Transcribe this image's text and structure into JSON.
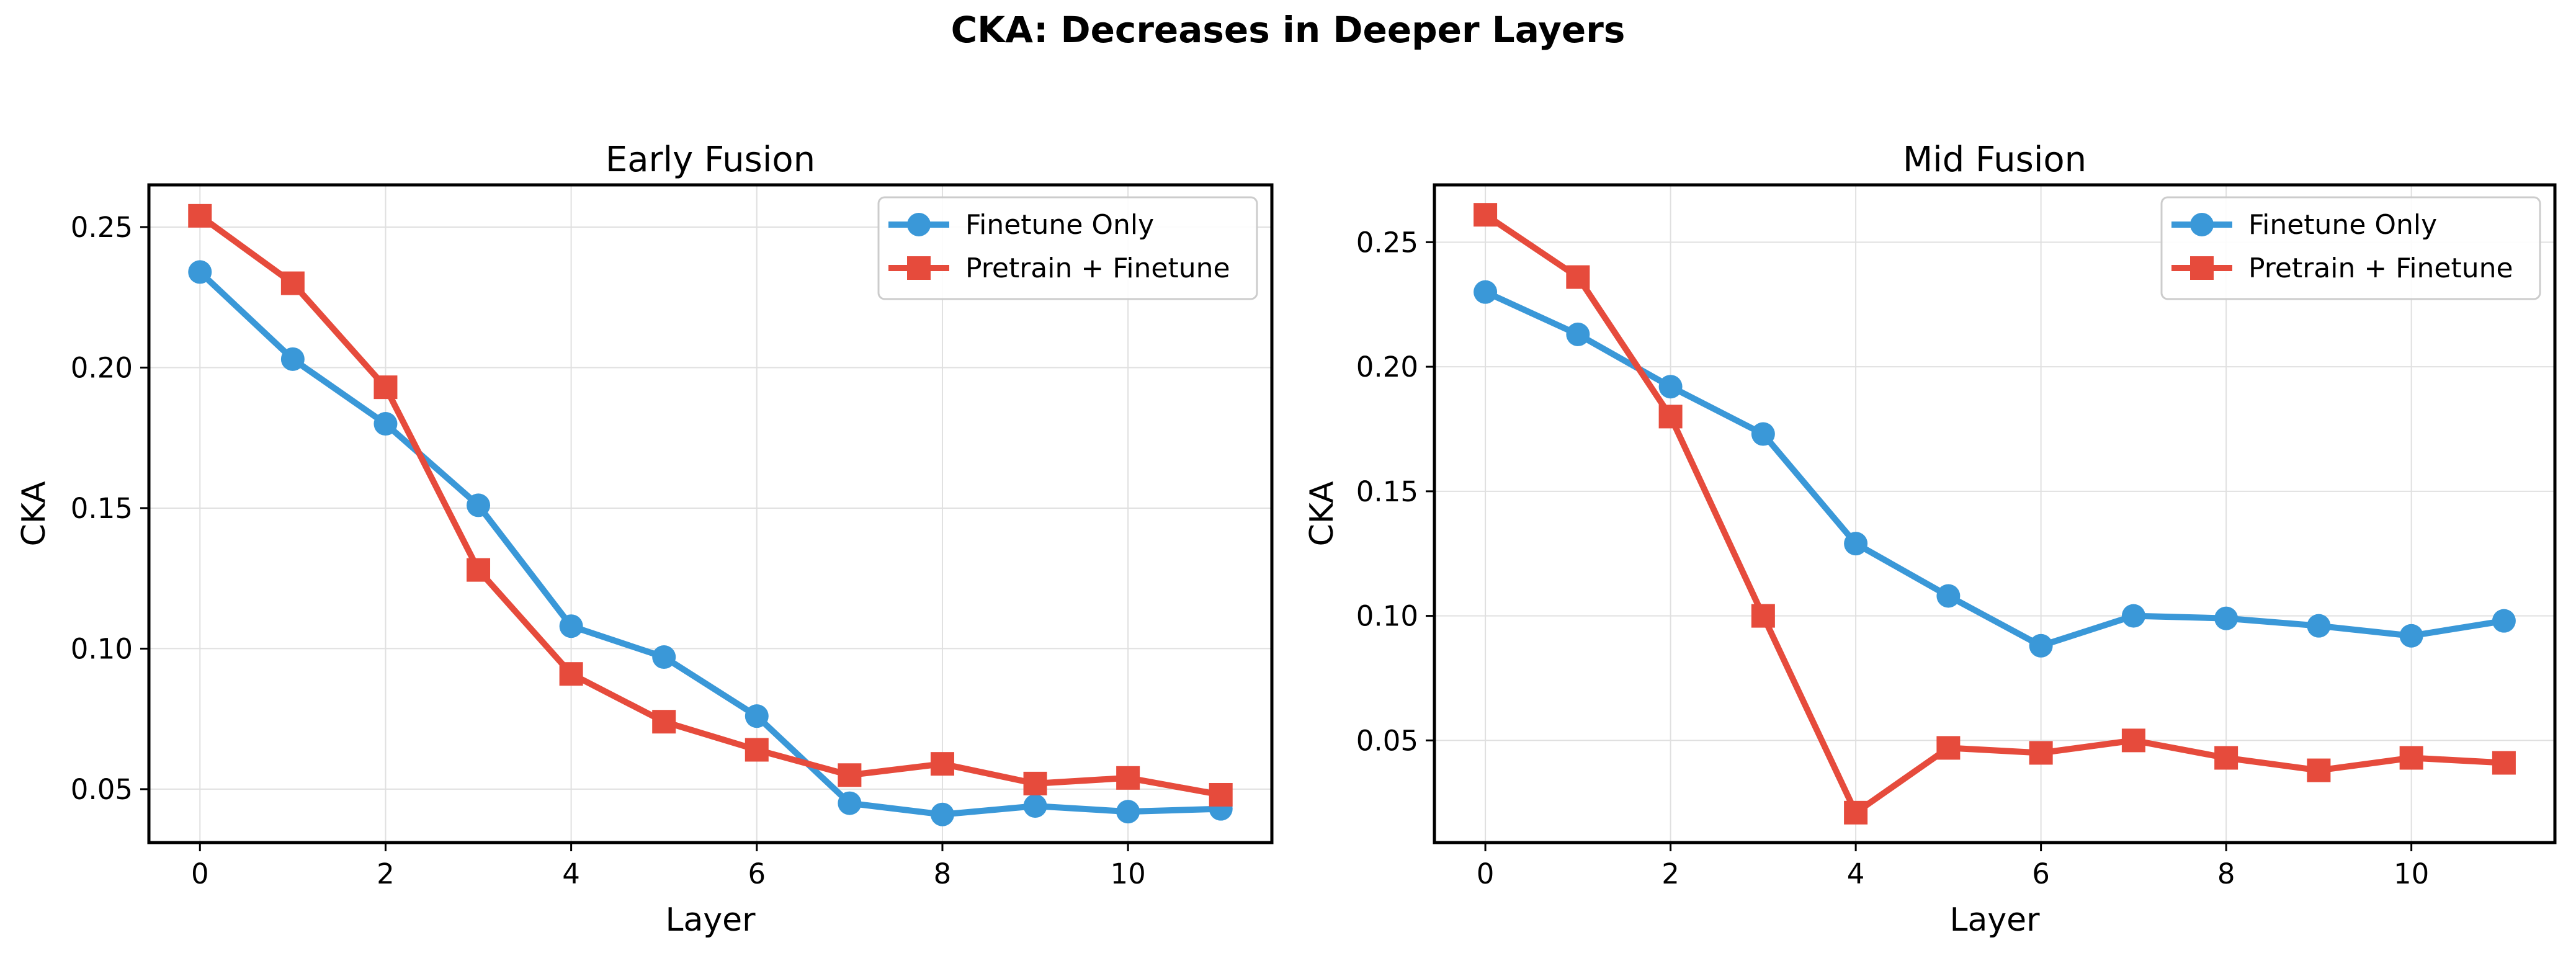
{
  "figure": {
    "title": "CKA: Decreases in Deeper Layers",
    "colors": {
      "finetune": "#3a98d8",
      "pretrain": "#e64b3c",
      "grid": "#e0e0e0",
      "axes": "#000000"
    }
  },
  "chart_data": [
    {
      "type": "line",
      "title": "Early Fusion",
      "xlabel": "Layer",
      "ylabel": "CKA",
      "x": [
        0,
        1,
        2,
        3,
        4,
        5,
        6,
        7,
        8,
        9,
        10,
        11
      ],
      "xlim": [
        -0.55,
        11.55
      ],
      "ylim": [
        0.031,
        0.265
      ],
      "xticks": [
        0,
        2,
        4,
        6,
        8,
        10
      ],
      "xtick_labels": [
        "0",
        "2",
        "4",
        "6",
        "8",
        "10"
      ],
      "yticks": [
        0.05,
        0.1,
        0.15,
        0.2,
        0.25
      ],
      "ytick_labels": [
        "0.05",
        "0.10",
        "0.15",
        "0.20",
        "0.25"
      ],
      "grid": true,
      "legend_position": "top-right",
      "series": [
        {
          "name": "Finetune Only",
          "marker": "circle",
          "color": "#3a98d8",
          "values": [
            0.234,
            0.203,
            0.18,
            0.151,
            0.108,
            0.097,
            0.076,
            0.045,
            0.041,
            0.044,
            0.042,
            0.043
          ]
        },
        {
          "name": "Pretrain + Finetune",
          "marker": "square",
          "color": "#e64b3c",
          "values": [
            0.254,
            0.23,
            0.193,
            0.128,
            0.091,
            0.074,
            0.064,
            0.055,
            0.059,
            0.052,
            0.054,
            0.048
          ]
        }
      ]
    },
    {
      "type": "line",
      "title": "Mid Fusion",
      "xlabel": "Layer",
      "ylabel": "CKA",
      "x": [
        0,
        1,
        2,
        3,
        4,
        5,
        6,
        7,
        8,
        9,
        10,
        11
      ],
      "xlim": [
        -0.55,
        11.55
      ],
      "ylim": [
        0.009,
        0.273
      ],
      "xticks": [
        0,
        2,
        4,
        6,
        8,
        10
      ],
      "xtick_labels": [
        "0",
        "2",
        "4",
        "6",
        "8",
        "10"
      ],
      "yticks": [
        0.05,
        0.1,
        0.15,
        0.2,
        0.25
      ],
      "ytick_labels": [
        "0.05",
        "0.10",
        "0.15",
        "0.20",
        "0.25"
      ],
      "grid": true,
      "legend_position": "top-right",
      "series": [
        {
          "name": "Finetune Only",
          "marker": "circle",
          "color": "#3a98d8",
          "values": [
            0.23,
            0.213,
            0.192,
            0.173,
            0.129,
            0.108,
            0.088,
            0.1,
            0.099,
            0.096,
            0.092,
            0.098
          ]
        },
        {
          "name": "Pretrain + Finetune",
          "marker": "square",
          "color": "#e64b3c",
          "values": [
            0.261,
            0.236,
            0.18,
            0.1,
            0.021,
            0.047,
            0.045,
            0.05,
            0.043,
            0.038,
            0.043,
            0.041
          ]
        }
      ]
    }
  ]
}
